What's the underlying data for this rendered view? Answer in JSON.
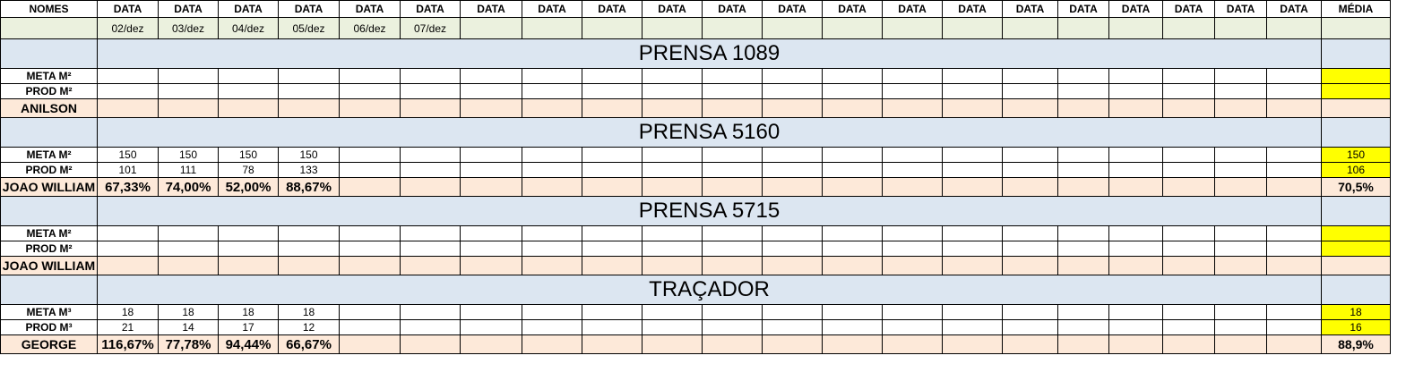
{
  "headers": {
    "nomes": "NOMES",
    "data_cols": [
      "DATA",
      "DATA",
      "DATA",
      "DATA",
      "DATA",
      "DATA",
      "DATA",
      "DATA",
      "DATA",
      "DATA",
      "DATA",
      "DATA",
      "DATA",
      "DATA",
      "DATA",
      "DATA",
      "DATA",
      "DATA",
      "DATA",
      "DATA",
      "DATA"
    ],
    "media": "MÉDIA"
  },
  "dates": [
    "02/dez",
    "03/dez",
    "04/dez",
    "05/dez",
    "06/dez",
    "07/dez",
    "",
    "",
    "",
    "",
    "",
    "",
    "",
    "",
    "",
    "",
    "",
    "",
    "",
    "",
    ""
  ],
  "sections": [
    {
      "title": "PRENSA 1089",
      "meta_label": "META M²",
      "prod_label": "PROD M²",
      "name": "ANILSON",
      "meta": [
        "",
        "",
        "",
        "",
        "",
        "",
        "",
        "",
        "",
        "",
        "",
        "",
        "",
        "",
        "",
        "",
        "",
        "",
        "",
        "",
        ""
      ],
      "prod": [
        "",
        "",
        "",
        "",
        "",
        "",
        "",
        "",
        "",
        "",
        "",
        "",
        "",
        "",
        "",
        "",
        "",
        "",
        "",
        "",
        ""
      ],
      "pct": [
        "",
        "",
        "",
        "",
        "",
        "",
        "",
        "",
        "",
        "",
        "",
        "",
        "",
        "",
        "",
        "",
        "",
        "",
        "",
        "",
        ""
      ],
      "meta_avg": "",
      "prod_avg": "",
      "pct_avg": ""
    },
    {
      "title": "PRENSA 5160",
      "meta_label": "META M²",
      "prod_label": "PROD M²",
      "name": "JOAO WILLIAM",
      "meta": [
        "150",
        "150",
        "150",
        "150",
        "",
        "",
        "",
        "",
        "",
        "",
        "",
        "",
        "",
        "",
        "",
        "",
        "",
        "",
        "",
        "",
        ""
      ],
      "prod": [
        "101",
        "111",
        "78",
        "133",
        "",
        "",
        "",
        "",
        "",
        "",
        "",
        "",
        "",
        "",
        "",
        "",
        "",
        "",
        "",
        "",
        ""
      ],
      "pct": [
        "67,33%",
        "74,00%",
        "52,00%",
        "88,67%",
        "",
        "",
        "",
        "",
        "",
        "",
        "",
        "",
        "",
        "",
        "",
        "",
        "",
        "",
        "",
        "",
        ""
      ],
      "meta_avg": "150",
      "prod_avg": "106",
      "pct_avg": "70,5%"
    },
    {
      "title": "PRENSA 5715",
      "meta_label": "META M²",
      "prod_label": "PROD M²",
      "name": "JOAO WILLIAM",
      "meta": [
        "",
        "",
        "",
        "",
        "",
        "",
        "",
        "",
        "",
        "",
        "",
        "",
        "",
        "",
        "",
        "",
        "",
        "",
        "",
        "",
        ""
      ],
      "prod": [
        "",
        "",
        "",
        "",
        "",
        "",
        "",
        "",
        "",
        "",
        "",
        "",
        "",
        "",
        "",
        "",
        "",
        "",
        "",
        "",
        ""
      ],
      "pct": [
        "",
        "",
        "",
        "",
        "",
        "",
        "",
        "",
        "",
        "",
        "",
        "",
        "",
        "",
        "",
        "",
        "",
        "",
        "",
        "",
        ""
      ],
      "meta_avg": "",
      "prod_avg": "",
      "pct_avg": ""
    },
    {
      "title": "TRAÇADOR",
      "meta_label": "META M³",
      "prod_label": "PROD M³",
      "name": "GEORGE",
      "meta": [
        "18",
        "18",
        "18",
        "18",
        "",
        "",
        "",
        "",
        "",
        "",
        "",
        "",
        "",
        "",
        "",
        "",
        "",
        "",
        "",
        "",
        ""
      ],
      "prod": [
        "21",
        "14",
        "17",
        "12",
        "",
        "",
        "",
        "",
        "",
        "",
        "",
        "",
        "",
        "",
        "",
        "",
        "",
        "",
        "",
        "",
        ""
      ],
      "pct": [
        "116,67%",
        "77,78%",
        "94,44%",
        "66,67%",
        "",
        "",
        "",
        "",
        "",
        "",
        "",
        "",
        "",
        "",
        "",
        "",
        "",
        "",
        "",
        "",
        ""
      ],
      "meta_avg": "18",
      "prod_avg": "16",
      "pct_avg": "88,9%"
    }
  ],
  "colors": {
    "date_row": "#ebf1de",
    "section_band": "#dce6f1",
    "name_row": "#fde9d9",
    "avg_highlight": "#ffff00"
  }
}
